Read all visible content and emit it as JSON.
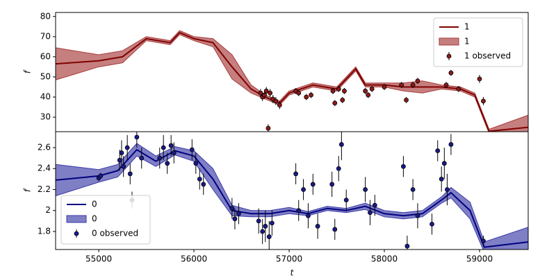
{
  "chart_data": [
    {
      "type": "line",
      "ylabel": "f",
      "xlim": [
        54547,
        59511
      ],
      "ylim": [
        22.8,
        82
      ],
      "yticks": [
        30,
        40,
        50,
        60,
        70,
        80
      ],
      "legend": "upper right",
      "x": [
        54547,
        55000,
        55250,
        55500,
        55750,
        55850,
        56000,
        56200,
        56400,
        56600,
        56750,
        56900,
        57000,
        57250,
        57500,
        57700,
        57800,
        58000,
        58200,
        58400,
        58600,
        58800,
        58950,
        59100,
        59511
      ],
      "series": [
        {
          "name": "1",
          "color": "#800000",
          "values": [
            56.5,
            58,
            60,
            69,
            67,
            72,
            69,
            67,
            55,
            44,
            40,
            37,
            42,
            46,
            44,
            54,
            46,
            46,
            45,
            45,
            45,
            44,
            41,
            23,
            25
          ]
        }
      ],
      "band": {
        "name": "1",
        "color": "#a83a3a",
        "lower": [
          48.5,
          55,
          57,
          68,
          66,
          71,
          68,
          65,
          49,
          42,
          39,
          36,
          41,
          45,
          43,
          53,
          45,
          45,
          43,
          42,
          44,
          43,
          40,
          22,
          19
        ],
        "upper": [
          64.5,
          61,
          63,
          70,
          68,
          73,
          70,
          69,
          61,
          46,
          41,
          38,
          43,
          47,
          45,
          55,
          47,
          47,
          47,
          48,
          46,
          45,
          42,
          24,
          31
        ]
      },
      "observed": {
        "name": "1 observed",
        "color": "#8b1a1a",
        "x": [
          56700,
          56720,
          56740,
          56760,
          56780,
          56800,
          56830,
          56860,
          56900,
          57070,
          57100,
          57180,
          57230,
          57460,
          57480,
          57520,
          57560,
          57580,
          57800,
          57830,
          57870,
          58000,
          58180,
          58230,
          58300,
          58350,
          58650,
          58700,
          58780,
          59000,
          59040
        ],
        "values": [
          42,
          40,
          41,
          43,
          24.5,
          42,
          39,
          38,
          36,
          43,
          42,
          40,
          41,
          43,
          37,
          44,
          38.5,
          43,
          43,
          41,
          44,
          45,
          46,
          38.5,
          46,
          48,
          46,
          52,
          44,
          49,
          38
        ],
        "errors": [
          2,
          2,
          2,
          2,
          2,
          2,
          2,
          2,
          2,
          1.5,
          1.5,
          1.5,
          1.5,
          1.5,
          1.5,
          1.5,
          1.5,
          1.5,
          1.5,
          1.5,
          1.5,
          1.5,
          1.5,
          1.5,
          1.5,
          1.5,
          1.5,
          1.5,
          1.5,
          2,
          2
        ]
      }
    },
    {
      "type": "line",
      "ylabel": "f",
      "xlabel": "t",
      "xlim": [
        54547,
        59511
      ],
      "xticks": [
        55000,
        56000,
        57000,
        58000,
        59000
      ],
      "ylim": [
        1.628,
        2.752
      ],
      "yticks": [
        1.8,
        2.0,
        2.2,
        2.4,
        2.6
      ],
      "legend": "lower left",
      "x": [
        54547,
        55000,
        55200,
        55400,
        55600,
        55800,
        56000,
        56200,
        56400,
        56600,
        56800,
        57000,
        57200,
        57400,
        57600,
        57800,
        58000,
        58200,
        58400,
        58600,
        58700,
        58900,
        59050,
        59511
      ],
      "series": [
        {
          "name": "0",
          "color": "#000080",
          "values": [
            2.29,
            2.33,
            2.38,
            2.58,
            2.47,
            2.57,
            2.52,
            2.3,
            2.0,
            1.97,
            1.97,
            2.0,
            1.97,
            2.02,
            2.0,
            2.04,
            1.97,
            1.95,
            1.97,
            2.1,
            2.17,
            2.0,
            1.65,
            1.7
          ]
        }
      ],
      "band": {
        "name": "0",
        "color": "#3b3ba8",
        "lower": [
          2.14,
          2.27,
          2.32,
          2.52,
          2.42,
          2.53,
          2.47,
          2.2,
          1.95,
          1.94,
          1.94,
          1.97,
          1.95,
          2.0,
          1.98,
          2.01,
          1.94,
          1.92,
          1.94,
          2.07,
          2.12,
          1.92,
          1.6,
          1.56
        ],
        "upper": [
          2.44,
          2.39,
          2.44,
          2.64,
          2.52,
          2.61,
          2.57,
          2.4,
          2.05,
          2.0,
          2.0,
          2.03,
          1.99,
          2.04,
          2.02,
          2.07,
          2.0,
          1.98,
          2.0,
          2.13,
          2.22,
          2.08,
          1.7,
          1.84
        ]
      },
      "observed": {
        "name": "0 observed",
        "color": "#1a1a8b",
        "x": [
          55000,
          55020,
          55220,
          55240,
          55260,
          55300,
          55330,
          55350,
          55400,
          55450,
          55640,
          55680,
          55720,
          55760,
          55790,
          55980,
          56020,
          56060,
          56100,
          56400,
          56430,
          56470,
          56680,
          56720,
          56750,
          56790,
          56820,
          57070,
          57100,
          57150,
          57200,
          57250,
          57300,
          57450,
          57480,
          57520,
          57550,
          57600,
          57800,
          57850,
          57900,
          58200,
          58240,
          58300,
          58350,
          58500,
          58560,
          58600,
          58630,
          58660,
          58700,
          59040
        ],
        "values": [
          2.31,
          2.33,
          2.48,
          2.55,
          2.42,
          2.6,
          2.35,
          2.1,
          2.7,
          2.5,
          2.5,
          2.6,
          2.45,
          2.62,
          2.55,
          2.58,
          2.45,
          2.3,
          2.25,
          2.02,
          1.92,
          1.97,
          1.9,
          1.8,
          1.85,
          1.75,
          1.88,
          2.35,
          2.0,
          2.2,
          1.95,
          2.25,
          1.85,
          2.25,
          1.82,
          2.4,
          2.63,
          2.1,
          2.2,
          1.98,
          2.05,
          2.42,
          1.66,
          2.2,
          1.95,
          1.87,
          2.57,
          2.3,
          2.45,
          2.2,
          2.63,
          1.71
        ],
        "errors": [
          0.03,
          0.03,
          0.1,
          0.12,
          0.1,
          0.12,
          0.1,
          0.08,
          0.1,
          0.1,
          0.1,
          0.12,
          0.1,
          0.1,
          0.1,
          0.1,
          0.1,
          0.1,
          0.1,
          0.1,
          0.1,
          0.1,
          0.12,
          0.12,
          0.15,
          0.15,
          0.12,
          0.1,
          0.1,
          0.1,
          0.12,
          0.1,
          0.12,
          0.12,
          0.1,
          0.12,
          0.15,
          0.1,
          0.12,
          0.12,
          0.1,
          0.1,
          0.1,
          0.1,
          0.12,
          0.1,
          0.1,
          0.12,
          0.15,
          0.15,
          0.1,
          0.05
        ]
      }
    }
  ]
}
